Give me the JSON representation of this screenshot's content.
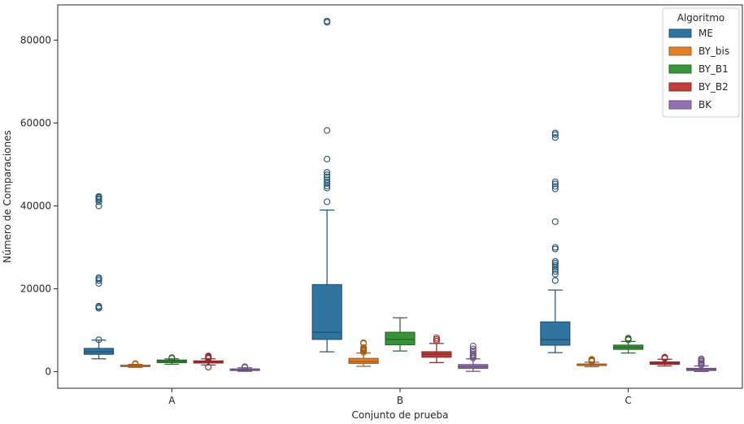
{
  "chart_data": {
    "type": "box",
    "title": "",
    "xlabel": "Conjunto de prueba",
    "ylabel": "Número de Comparaciones",
    "ylim": [
      -4000,
      88500
    ],
    "yticks": [
      0,
      20000,
      40000,
      60000,
      80000
    ],
    "ytick_labels": [
      "0",
      "20000",
      "40000",
      "60000",
      "80000"
    ],
    "categories": [
      "A",
      "B",
      "C"
    ],
    "legend": {
      "title": "Algoritmo",
      "placement": "top-right"
    },
    "grid": false,
    "series": [
      {
        "name": "ME",
        "color": "#3274a1",
        "boxes": [
          {
            "q1": 4200,
            "median": 4800,
            "q3": 5600,
            "whislo": 3100,
            "whishi": 7600,
            "fliers": [
              7700,
              15300,
              15600,
              15800,
              21300,
              22000,
              22400,
              22700,
              40000,
              41000,
              41500,
              41800,
              42100,
              42300
            ]
          },
          {
            "q1": 7800,
            "median": 9500,
            "q3": 21000,
            "whislo": 4800,
            "whishi": 39000,
            "fliers": [
              41000,
              44300,
              44800,
              45400,
              45800,
              46300,
              47000,
              47500,
              48100,
              51300,
              58200,
              84300,
              84600
            ]
          },
          {
            "q1": 6400,
            "median": 7700,
            "q3": 12000,
            "whislo": 4600,
            "whishi": 19700,
            "fliers": [
              22000,
              23500,
              24200,
              24700,
              25200,
              25700,
              26200,
              26600,
              29600,
              30000,
              36200,
              44100,
              44700,
              45300,
              45800,
              56500,
              57200,
              57600
            ]
          }
        ]
      },
      {
        "name": "BY_bis",
        "color": "#e1812c",
        "boxes": [
          {
            "q1": 1250,
            "median": 1400,
            "q3": 1550,
            "whislo": 1050,
            "whishi": 1750,
            "fliers": [
              1800,
              1850,
              1900,
              1950
            ]
          },
          {
            "q1": 2000,
            "median": 2500,
            "q3": 3200,
            "whislo": 1300,
            "whishi": 4500,
            "fliers": [
              4700,
              5000,
              5200,
              5400,
              5600,
              5800,
              6800,
              7000
            ]
          },
          {
            "q1": 1500,
            "median": 1650,
            "q3": 1850,
            "whislo": 1200,
            "whishi": 2300,
            "fliers": [
              2500,
              2700,
              2900,
              3000
            ]
          }
        ]
      },
      {
        "name": "BY_B1",
        "color": "#3a923a",
        "boxes": [
          {
            "q1": 2200,
            "median": 2550,
            "q3": 2800,
            "whislo": 1800,
            "whishi": 3100,
            "fliers": [
              3200,
              3300,
              3400
            ]
          },
          {
            "q1": 6500,
            "median": 7800,
            "q3": 9500,
            "whislo": 5000,
            "whishi": 13000,
            "fliers": []
          },
          {
            "q1": 5400,
            "median": 5900,
            "q3": 6400,
            "whislo": 4500,
            "whishi": 7300,
            "fliers": [
              7700,
              7900,
              8100
            ]
          }
        ]
      },
      {
        "name": "BY_B2",
        "color": "#c03d3e",
        "boxes": [
          {
            "q1": 2100,
            "median": 2350,
            "q3": 2600,
            "whislo": 1600,
            "whishi": 3100,
            "fliers": [
              1100,
              3200,
              3400,
              3600,
              3800
            ]
          },
          {
            "q1": 3500,
            "median": 4200,
            "q3": 4800,
            "whislo": 2200,
            "whishi": 6800,
            "fliers": [
              7400,
              7800,
              8200
            ]
          },
          {
            "q1": 1800,
            "median": 2050,
            "q3": 2350,
            "whislo": 1400,
            "whishi": 3000,
            "fliers": [
              3200,
              3400,
              3500
            ]
          }
        ]
      },
      {
        "name": "BK",
        "color": "#9372b2",
        "boxes": [
          {
            "q1": 300,
            "median": 450,
            "q3": 650,
            "whislo": 100,
            "whishi": 950,
            "fliers": [
              1000,
              1100,
              1200
            ]
          },
          {
            "q1": 800,
            "median": 1200,
            "q3": 1700,
            "whislo": 100,
            "whishi": 3100,
            "fliers": [
              3300,
              3600,
              3900,
              4200,
              4600,
              5000,
              5500,
              6200
            ]
          },
          {
            "q1": 300,
            "median": 500,
            "q3": 800,
            "whislo": 50,
            "whishi": 1400,
            "fliers": [
              1600,
              1900,
              2200,
              2500,
              2800,
              3100
            ]
          }
        ]
      }
    ]
  }
}
